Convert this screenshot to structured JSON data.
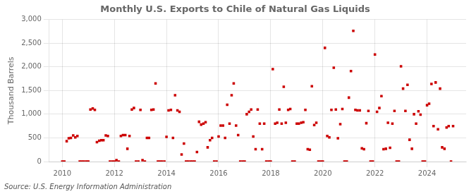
{
  "chart_data": {
    "type": "scatter",
    "title": "Monthly U.S. Exports to Chile of Natural Gas Liquids",
    "ylabel": "Thousand Barrels",
    "annotations": [
      "Source: U.S. Energy Information Administration"
    ],
    "color": "#cc0000",
    "marker": "square",
    "grid": true,
    "xlim": [
      2009.5,
      2025.5
    ],
    "xticks": [
      2010,
      2012,
      2014,
      2016,
      2018,
      2020,
      2022,
      2024
    ],
    "ylim": [
      0,
      3000
    ],
    "yticks": [
      0,
      500,
      {
        "value": 1000,
        "label": "1,000"
      },
      {
        "value": 1500,
        "label": "1,500"
      },
      {
        "value": 2000,
        "label": "2,000"
      },
      {
        "value": 2500,
        "label": "2,500"
      },
      {
        "value": 3000,
        "label": "3,000"
      }
    ],
    "x": [
      2010.0,
      2010.08,
      2010.17,
      2010.25,
      2010.33,
      2010.42,
      2010.5,
      2010.58,
      2010.67,
      2010.75,
      2010.83,
      2010.92,
      2011.0,
      2011.08,
      2011.17,
      2011.25,
      2011.33,
      2011.42,
      2011.5,
      2011.58,
      2011.67,
      2011.75,
      2011.83,
      2011.92,
      2012.0,
      2012.08,
      2012.17,
      2012.25,
      2012.33,
      2012.42,
      2012.5,
      2012.58,
      2012.67,
      2012.75,
      2012.83,
      2012.92,
      2013.0,
      2013.08,
      2013.17,
      2013.25,
      2013.33,
      2013.42,
      2013.5,
      2013.58,
      2013.67,
      2013.75,
      2013.83,
      2013.92,
      2014.0,
      2014.08,
      2014.17,
      2014.25,
      2014.33,
      2014.42,
      2014.5,
      2014.58,
      2014.67,
      2014.75,
      2014.83,
      2014.92,
      2015.0,
      2015.08,
      2015.17,
      2015.25,
      2015.33,
      2015.42,
      2015.5,
      2015.58,
      2015.67,
      2015.75,
      2015.83,
      2015.92,
      2016.0,
      2016.08,
      2016.17,
      2016.25,
      2016.33,
      2016.42,
      2016.5,
      2016.58,
      2016.67,
      2016.75,
      2016.83,
      2016.92,
      2017.0,
      2017.08,
      2017.17,
      2017.25,
      2017.33,
      2017.42,
      2017.5,
      2017.58,
      2017.67,
      2017.75,
      2017.83,
      2017.92,
      2018.0,
      2018.08,
      2018.17,
      2018.25,
      2018.33,
      2018.42,
      2018.5,
      2018.58,
      2018.67,
      2018.75,
      2018.83,
      2018.92,
      2019.0,
      2019.08,
      2019.17,
      2019.25,
      2019.33,
      2019.42,
      2019.5,
      2019.58,
      2019.67,
      2019.75,
      2019.83,
      2019.92,
      2020.0,
      2020.08,
      2020.17,
      2020.25,
      2020.33,
      2020.42,
      2020.5,
      2020.58,
      2020.67,
      2020.75,
      2020.83,
      2020.92,
      2021.0,
      2021.08,
      2021.17,
      2021.25,
      2021.33,
      2021.42,
      2021.5,
      2021.58,
      2021.67,
      2021.75,
      2021.83,
      2021.92,
      2022.0,
      2022.08,
      2022.17,
      2022.25,
      2022.33,
      2022.42,
      2022.5,
      2022.58,
      2022.67,
      2022.75,
      2022.83,
      2022.92,
      2023.0,
      2023.08,
      2023.17,
      2023.25,
      2023.33,
      2023.42,
      2023.5,
      2023.58,
      2023.67,
      2023.75,
      2023.83,
      2023.92,
      2024.0,
      2024.08,
      2024.17,
      2024.25,
      2024.33,
      2024.42,
      2024.5,
      2024.58,
      2024.67,
      2024.75,
      2024.83,
      2024.92,
      2025.0
    ],
    "values": [
      0,
      0,
      430,
      490,
      500,
      550,
      510,
      540,
      0,
      0,
      0,
      0,
      0,
      1100,
      1120,
      1090,
      410,
      440,
      450,
      450,
      550,
      540,
      0,
      0,
      0,
      30,
      0,
      540,
      560,
      560,
      270,
      540,
      1100,
      1130,
      0,
      0,
      1090,
      30,
      0,
      500,
      500,
      1090,
      1100,
      1650,
      0,
      0,
      0,
      0,
      520,
      1080,
      1090,
      500,
      1400,
      1080,
      1050,
      150,
      380,
      0,
      0,
      0,
      0,
      0,
      200,
      840,
      780,
      800,
      830,
      300,
      450,
      500,
      0,
      0,
      530,
      760,
      760,
      500,
      1200,
      800,
      1400,
      1650,
      760,
      560,
      0,
      0,
      0,
      1000,
      1050,
      1100,
      530,
      260,
      1100,
      800,
      260,
      800,
      0,
      0,
      0,
      1950,
      800,
      820,
      1100,
      800,
      1580,
      820,
      1090,
      1110,
      0,
      0,
      800,
      800,
      820,
      830,
      1090,
      260,
      250,
      1590,
      770,
      820,
      0,
      0,
      0,
      2400,
      540,
      510,
      1090,
      1980,
      1100,
      490,
      790,
      1110,
      0,
      0,
      1350,
      1910,
      2760,
      1090,
      1080,
      1080,
      280,
      260,
      810,
      1070,
      0,
      0,
      2260,
      1050,
      1130,
      1380,
      260,
      270,
      820,
      290,
      800,
      1070,
      0,
      0,
      2010,
      1540,
      1070,
      1620,
      460,
      270,
      1000,
      800,
      1060,
      990,
      0,
      0,
      1190,
      1220,
      1640,
      750,
      1670,
      680,
      1540,
      300,
      270,
      720,
      750,
      0,
      750
    ]
  }
}
